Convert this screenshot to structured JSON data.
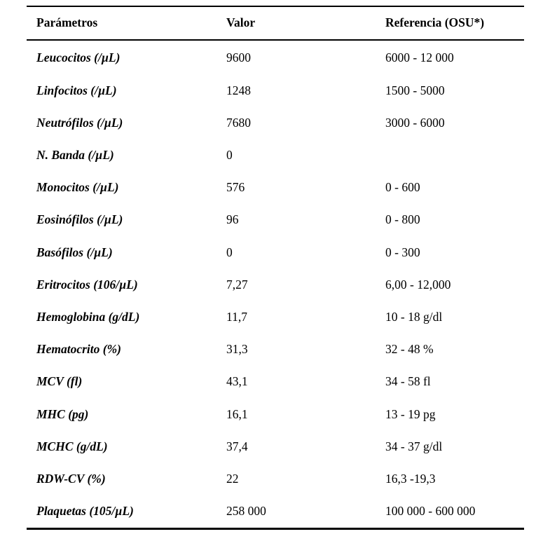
{
  "table": {
    "headers": [
      "Parámetros",
      "Valor",
      "Referencia (OSU*)"
    ],
    "rows": [
      {
        "param": "Leucocitos (/µL)",
        "valor": "9600",
        "ref": "6000 - 12 000"
      },
      {
        "param": "Linfocitos (/µL)",
        "valor": "1248",
        "ref": "1500 - 5000"
      },
      {
        "param": "Neutrófilos (/µL)",
        "valor": "7680",
        "ref": "3000 - 6000"
      },
      {
        "param": "N. Banda (/µL)",
        "valor": "0",
        "ref": ""
      },
      {
        "param": "Monocitos (/µL)",
        "valor": "576",
        "ref": "0 - 600"
      },
      {
        "param": "Eosinófilos (/µL)",
        "valor": "96",
        "ref": "0 - 800"
      },
      {
        "param": "Basófilos (/µL)",
        "valor": "0",
        "ref": "0 - 300"
      },
      {
        "param": "Eritrocitos (106/µL)",
        "valor": "7,27",
        "ref": "6,00 - 12,000"
      },
      {
        "param": "Hemoglobina (g/dL)",
        "valor": "11,7",
        "ref": "10 - 18 g/dl"
      },
      {
        "param": "Hematocrito (%)",
        "valor": "31,3",
        "ref": "32 - 48 %"
      },
      {
        "param": "MCV (fl)",
        "valor": "43,1",
        "ref": "34 - 58 fl"
      },
      {
        "param": "MHC (pg)",
        "valor": "16,1",
        "ref": "13 - 19 pg"
      },
      {
        "param": "MCHC (g/dL)",
        "valor": "37,4",
        "ref": "34 - 37 g/dl"
      },
      {
        "param": "RDW-CV (%)",
        "valor": "22",
        "ref": "16,3 -19,3"
      },
      {
        "param": "Plaquetas (105/µL)",
        "valor": "258 000",
        "ref": "100 000 - 600 000"
      }
    ]
  },
  "colors": {
    "background": "#ffffff",
    "text": "#000000",
    "rule": "#000000"
  }
}
